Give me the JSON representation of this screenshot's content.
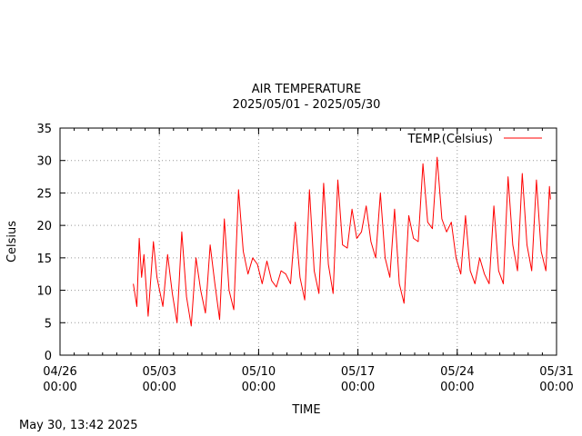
{
  "chart_data": {
    "type": "line",
    "title": "AIR TEMPERATURE",
    "subtitle": "2025/05/01 - 2025/05/30",
    "xlabel": "TIME",
    "ylabel": "Celsius",
    "xlim": [
      "2025-04-26 00:00",
      "2025-05-31 00:00"
    ],
    "ylim": [
      0,
      35
    ],
    "grid": true,
    "legend_position": "top-right",
    "y_ticks": [
      "0",
      "5",
      "10",
      "15",
      "20",
      "25",
      "30",
      "35"
    ],
    "x_ticks": [
      {
        "value": "2025-04-26 00:00",
        "date": "04/26",
        "time": "00:00"
      },
      {
        "value": "2025-05-03 00:00",
        "date": "05/03",
        "time": "00:00"
      },
      {
        "value": "2025-05-10 00:00",
        "date": "05/10",
        "time": "00:00"
      },
      {
        "value": "2025-05-17 00:00",
        "date": "05/17",
        "time": "00:00"
      },
      {
        "value": "2025-05-24 00:00",
        "date": "05/24",
        "time": "00:00"
      },
      {
        "value": "2025-05-31 00:00",
        "date": "05/31",
        "time": "00:00"
      }
    ],
    "series": [
      {
        "name": "TEMP.(Celsius)",
        "color": "#ff0000",
        "points": [
          [
            "2025-05-01 04:00",
            11.0
          ],
          [
            "2025-05-01 10:00",
            7.5
          ],
          [
            "2025-05-01 14:00",
            18.0
          ],
          [
            "2025-05-01 18:00",
            12.0
          ],
          [
            "2025-05-01 22:00",
            15.5
          ],
          [
            "2025-05-02 05:00",
            6.0
          ],
          [
            "2025-05-02 14:00",
            17.5
          ],
          [
            "2025-05-02 20:00",
            12.0
          ],
          [
            "2025-05-03 06:00",
            7.5
          ],
          [
            "2025-05-03 14:00",
            15.5
          ],
          [
            "2025-05-03 22:00",
            9.5
          ],
          [
            "2025-05-04 06:00",
            5.0
          ],
          [
            "2025-05-04 14:00",
            19.0
          ],
          [
            "2025-05-04 22:00",
            9.0
          ],
          [
            "2025-05-05 06:00",
            4.5
          ],
          [
            "2025-05-05 14:00",
            15.0
          ],
          [
            "2025-05-05 22:00",
            10.0
          ],
          [
            "2025-05-06 06:00",
            6.5
          ],
          [
            "2025-05-06 14:00",
            17.0
          ],
          [
            "2025-05-06 22:00",
            11.0
          ],
          [
            "2025-05-07 06:00",
            5.5
          ],
          [
            "2025-05-07 14:00",
            21.0
          ],
          [
            "2025-05-07 22:00",
            10.0
          ],
          [
            "2025-05-08 06:00",
            7.0
          ],
          [
            "2025-05-08 14:00",
            25.5
          ],
          [
            "2025-05-08 22:00",
            16.0
          ],
          [
            "2025-05-09 06:00",
            12.5
          ],
          [
            "2025-05-09 14:00",
            15.0
          ],
          [
            "2025-05-09 22:00",
            14.0
          ],
          [
            "2025-05-10 06:00",
            11.0
          ],
          [
            "2025-05-10 14:00",
            14.5
          ],
          [
            "2025-05-10 22:00",
            11.5
          ],
          [
            "2025-05-11 06:00",
            10.5
          ],
          [
            "2025-05-11 14:00",
            13.0
          ],
          [
            "2025-05-11 22:00",
            12.5
          ],
          [
            "2025-05-12 06:00",
            11.0
          ],
          [
            "2025-05-12 14:00",
            20.5
          ],
          [
            "2025-05-12 22:00",
            12.0
          ],
          [
            "2025-05-13 06:00",
            8.5
          ],
          [
            "2025-05-13 14:00",
            25.5
          ],
          [
            "2025-05-13 22:00",
            13.0
          ],
          [
            "2025-05-14 06:00",
            9.5
          ],
          [
            "2025-05-14 14:00",
            26.5
          ],
          [
            "2025-05-14 22:00",
            14.0
          ],
          [
            "2025-05-15 06:00",
            9.5
          ],
          [
            "2025-05-15 14:00",
            27.0
          ],
          [
            "2025-05-15 22:00",
            17.0
          ],
          [
            "2025-05-16 06:00",
            16.5
          ],
          [
            "2025-05-16 14:00",
            22.5
          ],
          [
            "2025-05-16 22:00",
            18.0
          ],
          [
            "2025-05-17 06:00",
            19.0
          ],
          [
            "2025-05-17 14:00",
            23.0
          ],
          [
            "2025-05-17 22:00",
            17.5
          ],
          [
            "2025-05-18 06:00",
            15.0
          ],
          [
            "2025-05-18 14:00",
            25.0
          ],
          [
            "2025-05-18 22:00",
            15.0
          ],
          [
            "2025-05-19 06:00",
            12.0
          ],
          [
            "2025-05-19 14:00",
            22.5
          ],
          [
            "2025-05-19 22:00",
            11.0
          ],
          [
            "2025-05-20 06:00",
            8.0
          ],
          [
            "2025-05-20 14:00",
            21.5
          ],
          [
            "2025-05-20 22:00",
            18.0
          ],
          [
            "2025-05-21 06:00",
            17.5
          ],
          [
            "2025-05-21 14:00",
            29.5
          ],
          [
            "2025-05-21 22:00",
            20.5
          ],
          [
            "2025-05-22 06:00",
            19.5
          ],
          [
            "2025-05-22 14:00",
            30.5
          ],
          [
            "2025-05-22 22:00",
            21.0
          ],
          [
            "2025-05-23 06:00",
            19.0
          ],
          [
            "2025-05-23 14:00",
            20.5
          ],
          [
            "2025-05-23 22:00",
            15.0
          ],
          [
            "2025-05-24 06:00",
            12.5
          ],
          [
            "2025-05-24 14:00",
            21.5
          ],
          [
            "2025-05-24 22:00",
            13.0
          ],
          [
            "2025-05-25 06:00",
            11.0
          ],
          [
            "2025-05-25 14:00",
            15.0
          ],
          [
            "2025-05-25 22:00",
            12.5
          ],
          [
            "2025-05-26 06:00",
            11.0
          ],
          [
            "2025-05-26 14:00",
            23.0
          ],
          [
            "2025-05-26 22:00",
            13.0
          ],
          [
            "2025-05-27 06:00",
            11.0
          ],
          [
            "2025-05-27 14:00",
            27.5
          ],
          [
            "2025-05-27 22:00",
            17.0
          ],
          [
            "2025-05-28 06:00",
            13.0
          ],
          [
            "2025-05-28 14:00",
            28.0
          ],
          [
            "2025-05-28 22:00",
            17.0
          ],
          [
            "2025-05-29 06:00",
            13.0
          ],
          [
            "2025-05-29 14:00",
            27.0
          ],
          [
            "2025-05-29 22:00",
            16.0
          ],
          [
            "2025-05-30 06:00",
            13.0
          ],
          [
            "2025-05-30 12:00",
            26.0
          ],
          [
            "2025-05-30 13:42",
            24.0
          ]
        ]
      }
    ]
  },
  "footer": {
    "timestamp": "May 30, 13:42 2025"
  }
}
